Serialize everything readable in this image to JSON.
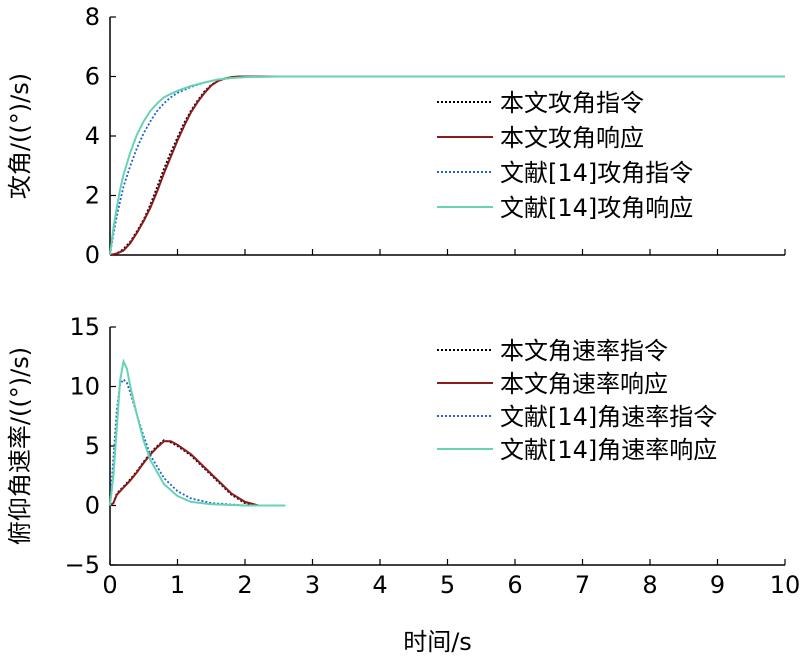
{
  "chart_data": [
    {
      "type": "line",
      "xlim": [
        0,
        10
      ],
      "ylim": [
        0,
        8
      ],
      "xticks": [],
      "yticks": [
        "0",
        "2",
        "4",
        "6",
        "8"
      ],
      "ylabel": "攻角/((°)/s)",
      "legend_position": "right",
      "series": [
        {
          "name": "本文攻角指令",
          "color": "#000000",
          "dash": "dot",
          "x": [
            0,
            0.1,
            0.2,
            0.3,
            0.4,
            0.5,
            0.6,
            0.7,
            0.8,
            0.9,
            1.0,
            1.1,
            1.2,
            1.3,
            1.4,
            1.5,
            1.6,
            1.7,
            1.8,
            1.9,
            2.0,
            2.2,
            2.5,
            3.0,
            3.5
          ],
          "y": [
            0,
            0.05,
            0.2,
            0.45,
            0.8,
            1.2,
            1.7,
            2.3,
            2.9,
            3.45,
            3.95,
            4.45,
            4.85,
            5.2,
            5.5,
            5.72,
            5.85,
            5.93,
            5.97,
            5.99,
            6.0,
            6.0,
            6.0,
            6.0,
            6.0
          ]
        },
        {
          "name": "本文攻角响应",
          "color": "#8b1a1a",
          "dash": "solid",
          "x": [
            0,
            0.1,
            0.2,
            0.3,
            0.4,
            0.5,
            0.6,
            0.7,
            0.8,
            0.9,
            1.0,
            1.1,
            1.2,
            1.3,
            1.4,
            1.5,
            1.6,
            1.7,
            1.8,
            1.9,
            2.0,
            2.2,
            2.5,
            3.0,
            3.5
          ],
          "y": [
            0,
            0.05,
            0.15,
            0.4,
            0.75,
            1.15,
            1.6,
            2.15,
            2.75,
            3.3,
            3.85,
            4.35,
            4.8,
            5.15,
            5.45,
            5.7,
            5.85,
            5.93,
            5.98,
            6.0,
            6.0,
            6.0,
            6.0,
            6.0,
            6.0
          ]
        },
        {
          "name": "文献[14]攻角指令",
          "color": "#1f5fd6",
          "dash": "dot",
          "x": [
            0,
            0.05,
            0.1,
            0.15,
            0.2,
            0.3,
            0.4,
            0.5,
            0.6,
            0.7,
            0.8,
            0.9,
            1.0,
            1.2,
            1.4,
            1.6,
            1.8,
            2.0,
            2.5,
            3.0,
            10
          ],
          "y": [
            0,
            0.7,
            1.3,
            1.8,
            2.3,
            3.0,
            3.6,
            4.1,
            4.5,
            4.85,
            5.1,
            5.3,
            5.45,
            5.65,
            5.8,
            5.9,
            5.95,
            5.98,
            6.0,
            6.0,
            6.0
          ]
        },
        {
          "name": "文献[14]攻角响应",
          "color": "#66d4b0",
          "dash": "solid",
          "x": [
            0,
            0.05,
            0.1,
            0.15,
            0.2,
            0.3,
            0.4,
            0.5,
            0.6,
            0.7,
            0.8,
            0.9,
            1.0,
            1.2,
            1.4,
            1.6,
            1.8,
            2.0,
            2.5,
            3.0,
            10
          ],
          "y": [
            0,
            0.9,
            1.6,
            2.2,
            2.7,
            3.45,
            4.05,
            4.5,
            4.85,
            5.1,
            5.3,
            5.42,
            5.52,
            5.68,
            5.8,
            5.9,
            5.95,
            5.98,
            6.0,
            6.0,
            6.0
          ]
        }
      ]
    },
    {
      "type": "line",
      "xlim": [
        0,
        10
      ],
      "ylim": [
        -5,
        15
      ],
      "xticks": [
        "0",
        "1",
        "2",
        "3",
        "4",
        "5",
        "6",
        "7",
        "8",
        "9",
        "10"
      ],
      "yticks": [
        "−5",
        "0",
        "5",
        "10",
        "15"
      ],
      "xlabel": "时间/s",
      "ylabel": "俯仰角速率/((°)/s)",
      "legend_position": "right",
      "series": [
        {
          "name": "本文角速率指令",
          "color": "#000000",
          "dash": "dot",
          "x": [
            0,
            0.05,
            0.1,
            0.2,
            0.3,
            0.4,
            0.5,
            0.6,
            0.7,
            0.8,
            0.9,
            1.0,
            1.2,
            1.4,
            1.6,
            1.8,
            2.0,
            2.2,
            2.5
          ],
          "y": [
            0,
            0.2,
            1.0,
            1.6,
            2.2,
            2.9,
            3.7,
            4.4,
            5.0,
            5.5,
            5.3,
            5.0,
            4.2,
            3.1,
            2.0,
            0.9,
            0.2,
            0.0,
            0.0
          ]
        },
        {
          "name": "本文角速率响应",
          "color": "#8b1a1a",
          "dash": "solid",
          "x": [
            0,
            0.05,
            0.1,
            0.2,
            0.3,
            0.4,
            0.5,
            0.6,
            0.7,
            0.8,
            0.9,
            1.0,
            1.2,
            1.4,
            1.6,
            1.8,
            2.0,
            2.2,
            2.5
          ],
          "y": [
            0,
            0.2,
            0.9,
            1.5,
            2.1,
            2.8,
            3.6,
            4.3,
            4.9,
            5.4,
            5.4,
            5.1,
            4.3,
            3.2,
            2.1,
            1.0,
            0.3,
            0.0,
            0.0
          ]
        },
        {
          "name": "文献[14]角速率指令",
          "color": "#1f5fd6",
          "dash": "dot",
          "x": [
            0,
            0.05,
            0.1,
            0.15,
            0.2,
            0.25,
            0.3,
            0.4,
            0.5,
            0.6,
            0.8,
            1.0,
            1.2,
            1.5,
            2.0,
            2.5
          ],
          "y": [
            0,
            4.0,
            8.0,
            10.2,
            10.6,
            10.3,
            9.5,
            7.6,
            5.8,
            4.2,
            2.3,
            1.2,
            0.6,
            0.2,
            0.0,
            0.0
          ]
        },
        {
          "name": "文献[14]角速率响应",
          "color": "#66d4b0",
          "dash": "solid",
          "x": [
            0,
            0.05,
            0.1,
            0.15,
            0.2,
            0.25,
            0.3,
            0.4,
            0.5,
            0.6,
            0.8,
            1.0,
            1.2,
            1.5,
            2.0,
            2.6
          ],
          "y": [
            0,
            2.5,
            6.5,
            10.5,
            12.1,
            11.5,
            10.0,
            7.6,
            5.4,
            3.8,
            1.8,
            0.8,
            0.3,
            0.1,
            0.0,
            0.0
          ]
        }
      ]
    }
  ]
}
